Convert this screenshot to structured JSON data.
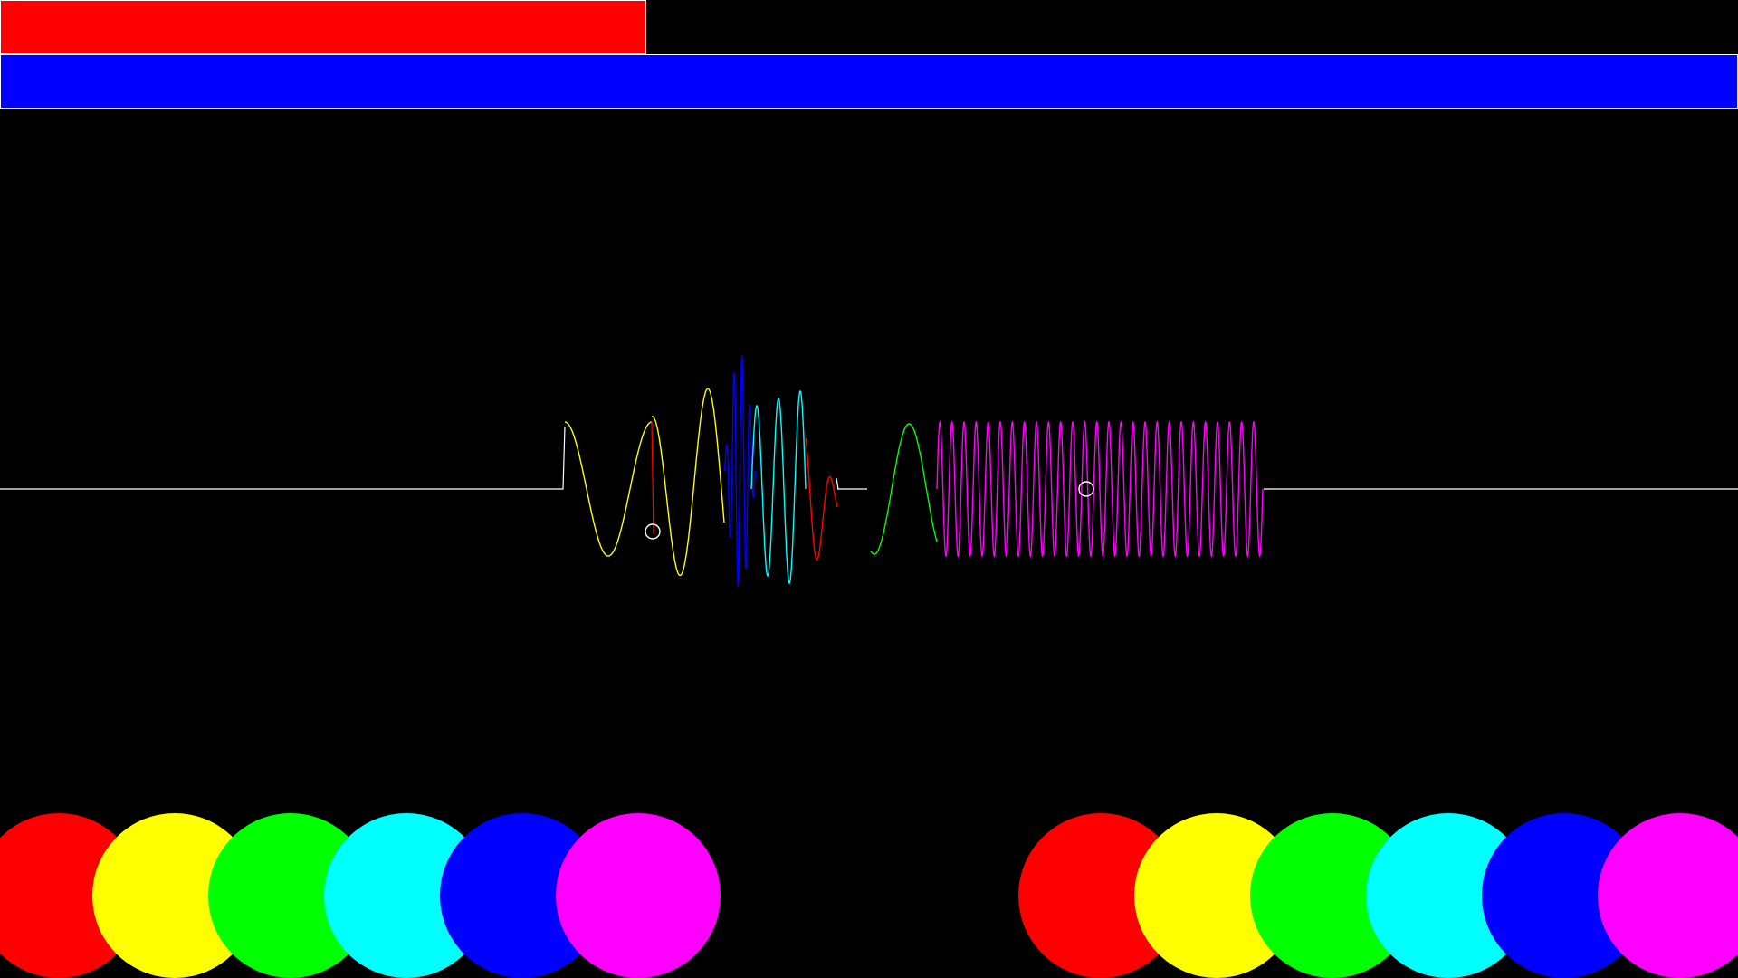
{
  "status_bars": {
    "health": {
      "fraction": 0.372,
      "color": "#ff0000",
      "border_color": "#ffffff"
    },
    "energy": {
      "fraction": 1.0,
      "color": "#0000ff",
      "border_color": "#ffffff"
    }
  },
  "waveform": {
    "baseline_color": "#ffffff",
    "segment_colors": [
      "#ffff00",
      "#0000ff",
      "#00ffff",
      "#ff0000",
      "#00ff00",
      "#ff00ff"
    ],
    "cursor_color": "#ffffff"
  },
  "palette_left": {
    "colors": [
      "#ff0000",
      "#ffff00",
      "#00ff00",
      "#00ffff",
      "#0000ff",
      "#ff00ff"
    ]
  },
  "palette_right": {
    "colors": [
      "#ff0000",
      "#ffff00",
      "#00ff00",
      "#00ffff",
      "#0000ff",
      "#ff00ff"
    ]
  }
}
